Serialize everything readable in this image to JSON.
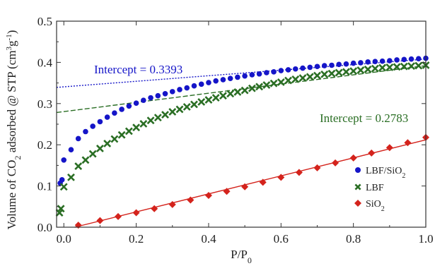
{
  "chart_data": {
    "type": "scatter",
    "xlabel": "P/P",
    "xlabel_sub": "0",
    "ylabel_parts": [
      "Volume of CO",
      "2",
      " adsorbed @ STP (cm",
      "3",
      "g",
      "-1",
      ")"
    ],
    "xlim": [
      -0.02,
      1.0
    ],
    "ylim": [
      0.0,
      0.5
    ],
    "xticks": [
      "0.0",
      "0.2",
      "0.4",
      "0.6",
      "0.8",
      "1.0"
    ],
    "xtick_values": [
      0.0,
      0.2,
      0.4,
      0.6,
      0.8,
      1.0
    ],
    "yticks": [
      "0.0",
      "0.1",
      "0.2",
      "0.3",
      "0.4",
      "0.5"
    ],
    "ytick_values": [
      0.0,
      0.1,
      0.2,
      0.3,
      0.4,
      0.5
    ],
    "grid": false,
    "legend_position": "lower-right",
    "series": [
      {
        "name": "LBF/SiO2",
        "legend_parts": [
          "LBF/SiO",
          "2"
        ],
        "marker": "circle",
        "color": "#1515c8",
        "x": [
          -0.01,
          -0.005,
          0.0,
          0.02,
          0.04,
          0.06,
          0.08,
          0.1,
          0.12,
          0.14,
          0.16,
          0.18,
          0.2,
          0.22,
          0.24,
          0.26,
          0.28,
          0.3,
          0.32,
          0.34,
          0.36,
          0.38,
          0.4,
          0.42,
          0.44,
          0.46,
          0.48,
          0.5,
          0.52,
          0.54,
          0.56,
          0.58,
          0.6,
          0.62,
          0.64,
          0.66,
          0.68,
          0.7,
          0.72,
          0.74,
          0.76,
          0.78,
          0.8,
          0.82,
          0.84,
          0.86,
          0.88,
          0.9,
          0.92,
          0.94,
          0.96,
          0.98,
          1.0
        ],
        "y": [
          0.107,
          0.115,
          0.163,
          0.188,
          0.215,
          0.232,
          0.245,
          0.256,
          0.267,
          0.277,
          0.286,
          0.294,
          0.301,
          0.308,
          0.314,
          0.319,
          0.324,
          0.329,
          0.334,
          0.338,
          0.343,
          0.347,
          0.351,
          0.355,
          0.358,
          0.361,
          0.364,
          0.367,
          0.37,
          0.372,
          0.375,
          0.377,
          0.38,
          0.382,
          0.384,
          0.386,
          0.388,
          0.39,
          0.392,
          0.393,
          0.395,
          0.396,
          0.398,
          0.399,
          0.401,
          0.402,
          0.403,
          0.404,
          0.406,
          0.407,
          0.408,
          0.409,
          0.41
        ]
      },
      {
        "name": "LBF",
        "legend_parts": [
          "LBF"
        ],
        "marker": "x",
        "color": "#2a6e24",
        "x": [
          -0.012,
          -0.008,
          0.0,
          0.02,
          0.04,
          0.06,
          0.08,
          0.1,
          0.12,
          0.14,
          0.16,
          0.18,
          0.2,
          0.22,
          0.24,
          0.26,
          0.28,
          0.3,
          0.32,
          0.34,
          0.36,
          0.38,
          0.4,
          0.42,
          0.44,
          0.46,
          0.48,
          0.5,
          0.52,
          0.54,
          0.56,
          0.58,
          0.6,
          0.62,
          0.64,
          0.66,
          0.68,
          0.7,
          0.72,
          0.74,
          0.76,
          0.78,
          0.8,
          0.82,
          0.84,
          0.86,
          0.88,
          0.9,
          0.92,
          0.94,
          0.96,
          0.98,
          1.0
        ],
        "y": [
          0.035,
          0.045,
          0.098,
          0.121,
          0.148,
          0.163,
          0.178,
          0.191,
          0.203,
          0.214,
          0.224,
          0.233,
          0.242,
          0.251,
          0.259,
          0.266,
          0.273,
          0.28,
          0.286,
          0.292,
          0.298,
          0.304,
          0.309,
          0.314,
          0.319,
          0.324,
          0.328,
          0.332,
          0.337,
          0.341,
          0.345,
          0.349,
          0.352,
          0.356,
          0.359,
          0.362,
          0.365,
          0.368,
          0.371,
          0.373,
          0.375,
          0.377,
          0.379,
          0.381,
          0.383,
          0.385,
          0.387,
          0.388,
          0.389,
          0.39,
          0.391,
          0.392,
          0.393
        ]
      },
      {
        "name": "SiO2",
        "legend_parts": [
          "SiO",
          "2"
        ],
        "marker": "diamond",
        "color": "#d4231c",
        "x": [
          0.04,
          0.1,
          0.15,
          0.2,
          0.25,
          0.3,
          0.35,
          0.4,
          0.45,
          0.5,
          0.55,
          0.6,
          0.65,
          0.7,
          0.75,
          0.8,
          0.85,
          0.9,
          0.95,
          1.0
        ],
        "y": [
          0.005,
          0.016,
          0.026,
          0.035,
          0.045,
          0.055,
          0.066,
          0.077,
          0.087,
          0.098,
          0.109,
          0.121,
          0.133,
          0.144,
          0.156,
          0.168,
          0.18,
          0.193,
          0.205,
          0.218
        ]
      }
    ],
    "fit_lines": [
      {
        "name": "LBF/SiO2 fit",
        "color": "#1515c8",
        "dash": "2,2",
        "x": [
          -0.02,
          1.0
        ],
        "y": [
          0.3393,
          0.408
        ]
      },
      {
        "name": "LBF fit",
        "color": "#2a6e24",
        "dash": "7,3",
        "x": [
          -0.02,
          1.0
        ],
        "y": [
          0.2783,
          0.392
        ]
      },
      {
        "name": "SiO2 fit",
        "color": "#d4231c",
        "dash": "",
        "x": [
          0.03,
          1.0
        ],
        "y": [
          0.0,
          0.212
        ]
      }
    ],
    "annotations": [
      {
        "text": "Intercept = 0.3393",
        "color": "#1515c8"
      },
      {
        "text": "Intercept = 0.2783",
        "color": "#2a6e24"
      }
    ]
  }
}
